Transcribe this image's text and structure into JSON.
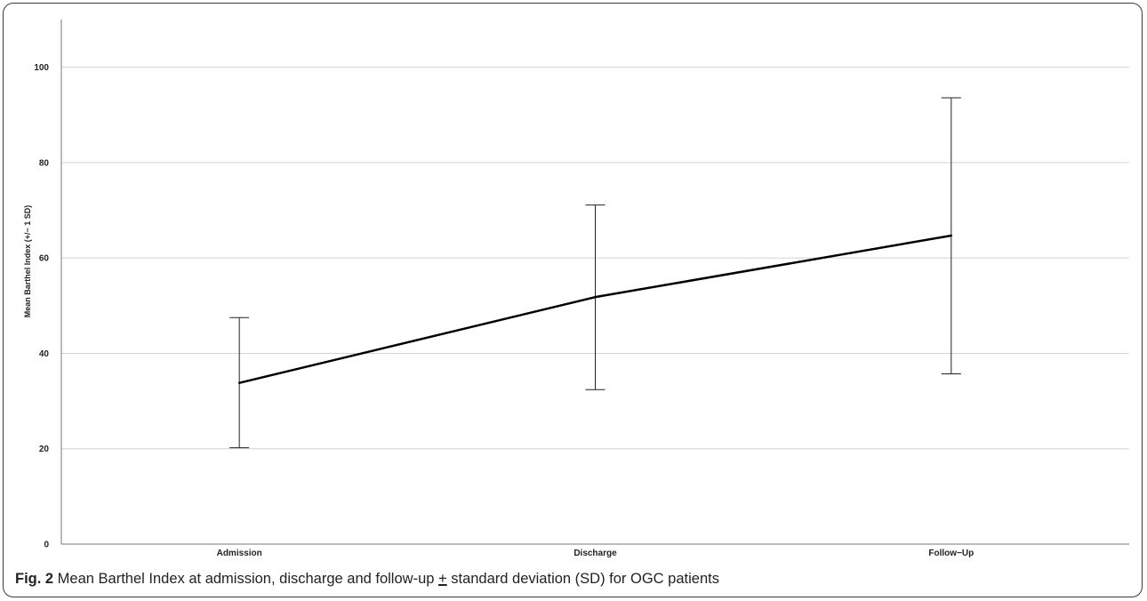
{
  "caption": {
    "label": "Fig. 2",
    "text_before": " Mean Barthel Index at admission, discharge and follow-up ",
    "symbol": "+",
    "text_after": " standard deviation (SD) for OGC patients"
  },
  "chart_data": {
    "type": "line",
    "title": "",
    "xlabel": "",
    "ylabel": "Mean Barthel Index (+/− 1 SD)",
    "categories": [
      "Admission",
      "Discharge",
      "Follow−Up"
    ],
    "series": [
      {
        "values": [
          33.8,
          51.8,
          64.7
        ],
        "error_lower": [
          20.2,
          32.4,
          35.7
        ],
        "error_upper": [
          47.5,
          71.1,
          93.6
        ]
      }
    ],
    "ylim": [
      0,
      110
    ],
    "yticks": [
      0,
      20,
      40,
      60,
      80,
      100
    ],
    "grid": true,
    "line_color": "#000000",
    "grid_color": "#d4d4d4"
  }
}
